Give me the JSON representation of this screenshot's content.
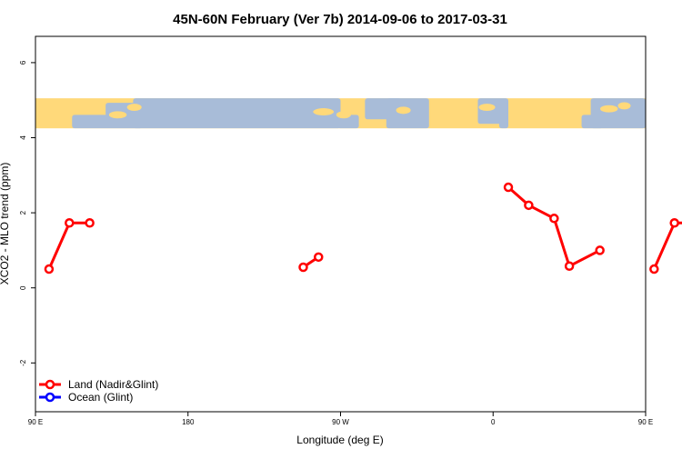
{
  "chart_data": {
    "type": "line",
    "title": "45N-60N February (Ver 7b)   2014-09-06 to 2017-03-31",
    "xlabel": "Longitude (deg E)",
    "ylabel": "XCO2 - MLO trend (ppm)",
    "xlim": [
      90,
      450
    ],
    "ylim": [
      -3.3,
      6.7
    ],
    "grid": false,
    "legend_position": "bottom-left",
    "x_ticks": [
      {
        "value": 90,
        "label": "90 E"
      },
      {
        "value": 180,
        "label": "180"
      },
      {
        "value": 270,
        "label": "90 W"
      },
      {
        "value": 360,
        "label": "0"
      },
      {
        "value": 450,
        "label": "90 E"
      },
      {
        "value": 540,
        "label": "180"
      }
    ],
    "y_ticks": [
      {
        "value": -2,
        "label": "-2"
      },
      {
        "value": 0,
        "label": "0"
      },
      {
        "value": 2,
        "label": "2"
      },
      {
        "value": 4,
        "label": "4"
      },
      {
        "value": 6,
        "label": "6"
      }
    ],
    "map_strip": {
      "y_range": [
        4.25,
        5.05
      ],
      "land_color": "#FFD97A",
      "ocean_color": "#A8BCD8"
    },
    "series": [
      {
        "name": "Land (Nadir&Glint)",
        "color": "#FF0000",
        "segments": [
          [
            {
              "x": 98,
              "y": 0.5
            },
            {
              "x": 110,
              "y": 1.73
            },
            {
              "x": 122,
              "y": 1.73
            }
          ],
          [
            {
              "x": 248,
              "y": 0.55
            },
            {
              "x": 257,
              "y": 0.82
            }
          ],
          [
            {
              "x": 369,
              "y": 2.68
            },
            {
              "x": 381,
              "y": 2.2
            },
            {
              "x": 396,
              "y": 1.85
            },
            {
              "x": 405,
              "y": 0.58
            },
            {
              "x": 423,
              "y": 1.0
            }
          ],
          [
            {
              "x": 455,
              "y": 0.5
            },
            {
              "x": 467,
              "y": 1.73
            },
            {
              "x": 479,
              "y": 1.73
            }
          ]
        ]
      },
      {
        "name": "Ocean (Glint)",
        "color": "#0000FF",
        "segments": []
      }
    ]
  }
}
